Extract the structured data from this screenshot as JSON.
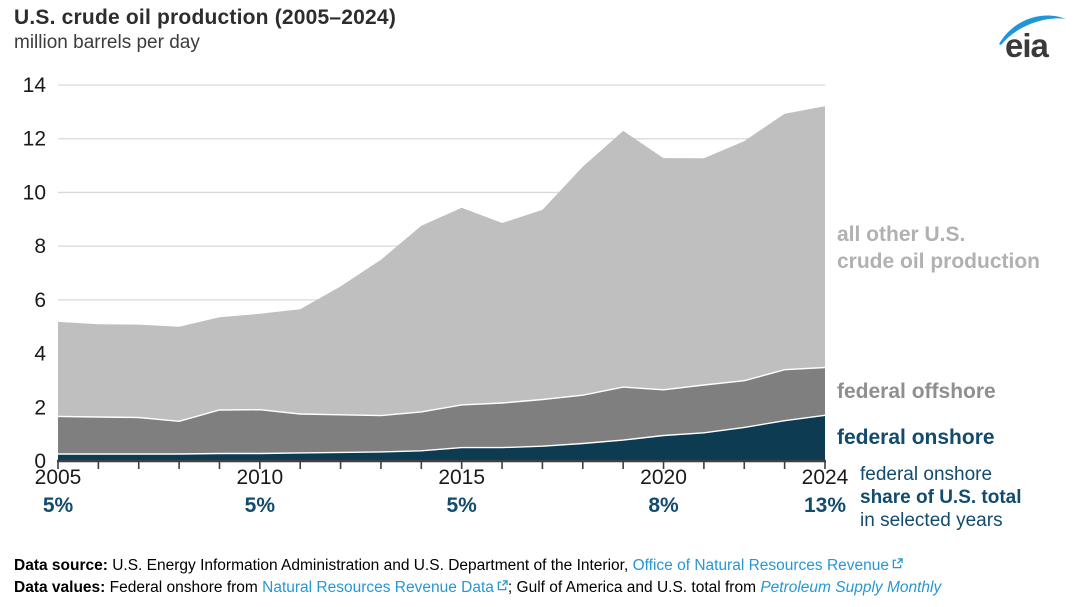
{
  "header": {
    "title": "U.S. crude oil production (2005–2024)",
    "subtitle": "million barrels per day",
    "logo_text": "eia"
  },
  "chart_data": {
    "type": "area",
    "stacked": true,
    "title": "U.S. crude oil production (2005–2024)",
    "ylabel": "million barrels per day",
    "xlabel": "",
    "x": [
      2005,
      2006,
      2007,
      2008,
      2009,
      2010,
      2011,
      2012,
      2013,
      2014,
      2015,
      2016,
      2017,
      2018,
      2019,
      2020,
      2021,
      2022,
      2023,
      2024
    ],
    "series": [
      {
        "name": "federal onshore",
        "color": "#0d3b52",
        "values": [
          0.26,
          0.26,
          0.26,
          0.26,
          0.28,
          0.28,
          0.3,
          0.32,
          0.34,
          0.38,
          0.5,
          0.5,
          0.55,
          0.65,
          0.78,
          0.95,
          1.05,
          1.25,
          1.5,
          1.7
        ]
      },
      {
        "name": "federal offshore",
        "color": "#7f7f7f",
        "values": [
          1.4,
          1.38,
          1.36,
          1.22,
          1.62,
          1.63,
          1.45,
          1.4,
          1.35,
          1.45,
          1.59,
          1.66,
          1.74,
          1.8,
          1.97,
          1.7,
          1.78,
          1.74,
          1.9,
          1.78
        ]
      },
      {
        "name": "all other U.S. crude oil production",
        "color": "#bfbfbf",
        "values": [
          3.52,
          3.45,
          3.46,
          3.52,
          3.45,
          3.57,
          3.9,
          4.78,
          5.8,
          6.93,
          7.34,
          6.7,
          7.06,
          8.51,
          9.54,
          8.63,
          8.44,
          8.92,
          9.53,
          9.73
        ]
      }
    ],
    "us_total": [
      5.18,
      5.09,
      5.08,
      5.0,
      5.35,
      5.48,
      5.65,
      6.5,
      7.49,
      8.76,
      9.43,
      8.86,
      9.35,
      10.96,
      12.29,
      11.28,
      11.27,
      11.91,
      12.93,
      13.21
    ],
    "ylim": [
      0,
      14
    ],
    "yticks": [
      0,
      2,
      4,
      6,
      8,
      10,
      12,
      14
    ],
    "xticks": [
      {
        "year": "2005",
        "share": "5%"
      },
      {
        "year": "2010",
        "share": "5%"
      },
      {
        "year": "2015",
        "share": "5%"
      },
      {
        "year": "2020",
        "share": "8%"
      },
      {
        "year": "2024",
        "share": "13%"
      }
    ],
    "grid": true,
    "legend_position": "right"
  },
  "legend": {
    "all_other": "all other U.S.\ncrude oil production",
    "offshore": "federal offshore",
    "onshore": "federal onshore"
  },
  "annotation": {
    "line1": "federal onshore",
    "line2": "share of U.S. total",
    "line3": "in selected years"
  },
  "footer": {
    "line1": {
      "label": "Data source: ",
      "text": "U.S. Energy Information Administration and U.S. Department of the Interior, ",
      "link": "Office of Natural Resources Revenue"
    },
    "line2": {
      "label": "Data values: ",
      "text1": "Federal onshore from ",
      "link1": "Natural Resources Revenue Data",
      "text2": "; Gulf of America and U.S. total from ",
      "link2": "Petroleum Supply Monthly"
    }
  },
  "colors": {
    "area_onshore": "#0d3b52",
    "area_offshore": "#7f7f7f",
    "area_all_other": "#bfbfbf",
    "navy_text": "#124b6d",
    "label_all_other": "#b1b1b1",
    "label_offshore": "#8f8f8f",
    "link_blue": "#2797d4",
    "logo_blue": "#2196d6",
    "gridline": "#d9d9d9",
    "axis": "#3f3f3f",
    "axis_text": "#1a1a1a"
  }
}
